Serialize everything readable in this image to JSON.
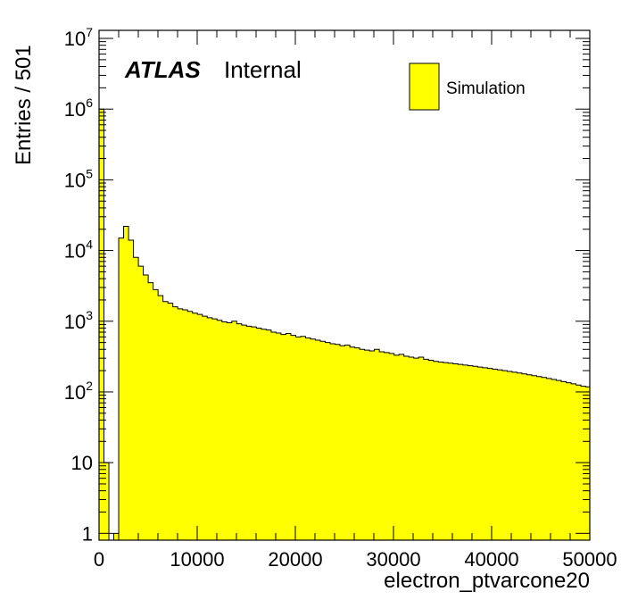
{
  "chart_data": {
    "type": "histogram",
    "title": "",
    "xlabel": "electron_ptvarcone20",
    "ylabel": "Entries / 501",
    "xlim": [
      0,
      50000
    ],
    "ylim": [
      0.8,
      13000000
    ],
    "yscale": "log",
    "bin_width": 501,
    "x_ticks": [
      "0",
      "10000",
      "20000",
      "30000",
      "40000",
      "50000"
    ],
    "y_ticks": [
      {
        "base": "1",
        "exp": ""
      },
      {
        "base": "10",
        "exp": ""
      },
      {
        "base": "10",
        "exp": "2"
      },
      {
        "base": "10",
        "exp": "3"
      },
      {
        "base": "10",
        "exp": "4"
      },
      {
        "base": "10",
        "exp": "5"
      },
      {
        "base": "10",
        "exp": "6"
      },
      {
        "base": "10",
        "exp": "7"
      }
    ],
    "grid": false,
    "legend_position": "top-right",
    "fill_color": "#ffff00",
    "series": [
      {
        "name": "Simulation",
        "bin_edges_start": 0,
        "values": [
          1000000,
          10,
          0,
          1,
          15000,
          22000,
          14000,
          8000,
          6000,
          4500,
          3500,
          2800,
          2300,
          1900,
          1800,
          1600,
          1500,
          1450,
          1380,
          1300,
          1250,
          1180,
          1120,
          1080,
          1030,
          980,
          950,
          1000,
          920,
          880,
          850,
          830,
          800,
          770,
          750,
          700,
          680,
          650,
          670,
          630,
          600,
          610,
          580,
          560,
          540,
          520,
          500,
          480,
          470,
          450,
          460,
          430,
          420,
          400,
          390,
          380,
          400,
          370,
          360,
          350,
          330,
          340,
          320,
          310,
          300,
          310,
          290,
          280,
          270,
          265,
          260,
          255,
          250,
          245,
          240,
          235,
          230,
          225,
          220,
          215,
          210,
          205,
          200,
          195,
          190,
          185,
          180,
          175,
          170,
          165,
          160,
          155,
          150,
          145,
          140,
          135,
          130,
          125,
          120,
          118,
          115
        ]
      }
    ]
  },
  "annotations": {
    "experiment": "ATLAS",
    "status": "Internal"
  },
  "legend": {
    "entries": [
      "Simulation"
    ]
  }
}
